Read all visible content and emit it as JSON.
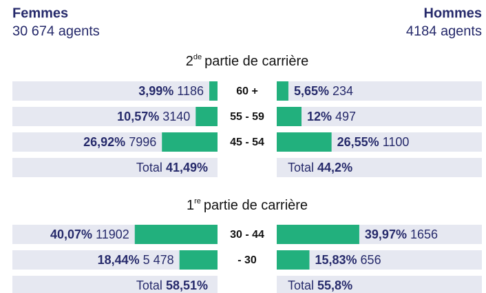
{
  "chart_data": {
    "type": "pyramid",
    "color": "#22b07d",
    "left": {
      "title": "Femmes",
      "subtitle": "30 674 agents"
    },
    "right": {
      "title": "Hommes",
      "subtitle": "4184 agents"
    },
    "total_label": "Total",
    "sections": [
      {
        "title_number": "2",
        "title_sup": "de",
        "title": "partie de carrière",
        "categories": [
          "60 +",
          "55 - 59",
          "45 - 54"
        ],
        "left": {
          "values": [
            3.99,
            10.57,
            26.92
          ],
          "value_labels": [
            "3,99%",
            "10,57%",
            "26,92%"
          ],
          "counts": [
            1186,
            3140,
            7996
          ],
          "total": 41.49,
          "total_label": "41,49%"
        },
        "right": {
          "values": [
            5.65,
            12,
            26.55
          ],
          "value_labels": [
            "5,65%",
            "12%",
            "26,55%"
          ],
          "counts": [
            234,
            497,
            1100
          ],
          "total": 44.2,
          "total_label": "44,2%"
        }
      },
      {
        "title_number": "1",
        "title_sup": "re",
        "title": "partie de carrière",
        "categories": [
          "30 - 44",
          "- 30"
        ],
        "left": {
          "values": [
            40.07,
            18.44
          ],
          "value_labels": [
            "40,07%",
            "18,44%"
          ],
          "counts": [
            11902,
            5478
          ],
          "count_labels": [
            "11902",
            "5 478"
          ],
          "total": 58.51,
          "total_label": "58,51%"
        },
        "right": {
          "values": [
            39.97,
            15.83
          ],
          "value_labels": [
            "39,97%",
            "15,83%"
          ],
          "counts": [
            1656,
            656
          ],
          "total": 55.8,
          "total_label": "55,8%"
        }
      }
    ]
  }
}
